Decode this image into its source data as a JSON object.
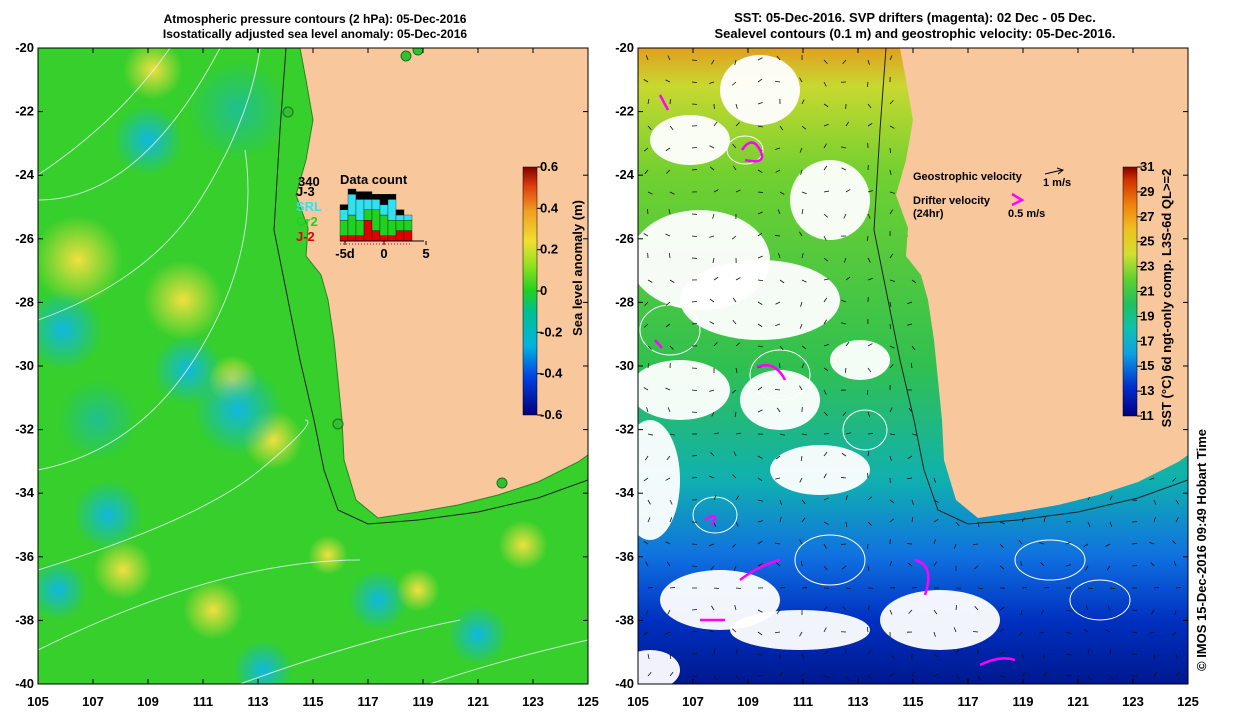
{
  "left_panel": {
    "title_line1": "Atmospheric pressure contours (2 hPa): 05-Dec-2016",
    "title_line2": "Isostatically adjusted sea level anomaly: 05-Dec-2016",
    "colorbar": {
      "label": "Sea level anomaly (m)",
      "ticks": [
        "0.6",
        "0.4",
        "0.2",
        "0",
        "-0.2",
        "-0.4",
        "-0.6"
      ],
      "range": [
        -0.6,
        0.6
      ]
    },
    "inset": {
      "title": "Data count",
      "max_label": "340",
      "legend": [
        {
          "name": "J-3",
          "color": "#000000"
        },
        {
          "name": "SRL",
          "color": "#33e0f0"
        },
        {
          "name": "Cr2",
          "color": "#22d022"
        },
        {
          "name": "J-2",
          "color": "#e00000"
        }
      ],
      "x_ticks": [
        "-5d",
        "0",
        "5"
      ],
      "bars": [
        {
          "J-2": 0.1,
          "Cr2": 0.3,
          "SRL": 0.2,
          "J-3": 0.1
        },
        {
          "J-2": 0.1,
          "Cr2": 0.4,
          "SRL": 0.4,
          "J-3": 0.1
        },
        {
          "J-2": 0.1,
          "Cr2": 0.3,
          "SRL": 0.4,
          "J-3": 0.15
        },
        {
          "J-2": 0.4,
          "Cr2": 0.2,
          "SRL": 0.2,
          "J-3": 0.15
        },
        {
          "J-2": 0.2,
          "Cr2": 0.4,
          "SRL": 0.2,
          "J-3": 0.1
        },
        {
          "J-2": 0.1,
          "Cr2": 0.4,
          "SRL": 0.2,
          "J-3": 0.2
        },
        {
          "J-2": 0.1,
          "Cr2": 0.3,
          "SRL": 0.4,
          "J-3": 0.1
        },
        {
          "J-2": 0.2,
          "Cr2": 0.2,
          "SRL": 0.1,
          "J-3": 0.1
        },
        {
          "J-2": 0.2,
          "Cr2": 0.2,
          "SRL": 0.1,
          "J-3": 0.0
        }
      ]
    }
  },
  "right_panel": {
    "title_line1": "SST: 05-Dec-2016. SVP drifters (magenta): 02 Dec - 05 Dec.",
    "title_line2": "Sealevel contours (0.1 m) and geostrophic velocity: 05-Dec-2016.",
    "legend": {
      "geostrophic_label": "Geostrophic velocity",
      "geostrophic_unit": "1 m/s",
      "drifter_label_1": "Drifter velocity",
      "drifter_label_2": "(24hr)",
      "drifter_unit": "0.5 m/s"
    },
    "colorbar": {
      "label": "SST (°C) 6d ngt-only comp. L3S-6d QL>=2",
      "ticks": [
        "31",
        "29",
        "27",
        "25",
        "23",
        "21",
        "19",
        "17",
        "15",
        "13",
        "11"
      ],
      "range": [
        11,
        31
      ]
    },
    "credit": "© IMOS 15-Dec-2016 09:49 Hobart Time"
  },
  "axes": {
    "lat_ticks": [
      "-20",
      "-22",
      "-24",
      "-26",
      "-28",
      "-30",
      "-32",
      "-34",
      "-36",
      "-38",
      "-40"
    ],
    "lon_ticks": [
      "105",
      "107",
      "109",
      "111",
      "113",
      "115",
      "117",
      "119",
      "121",
      "123",
      "125"
    ],
    "lat_range": [
      -40,
      -20
    ],
    "lon_range": [
      105,
      125
    ]
  },
  "colors": {
    "land": "#f8c89c",
    "ssla_base": "#36cf2c",
    "white_cloud": "#ffffff"
  }
}
